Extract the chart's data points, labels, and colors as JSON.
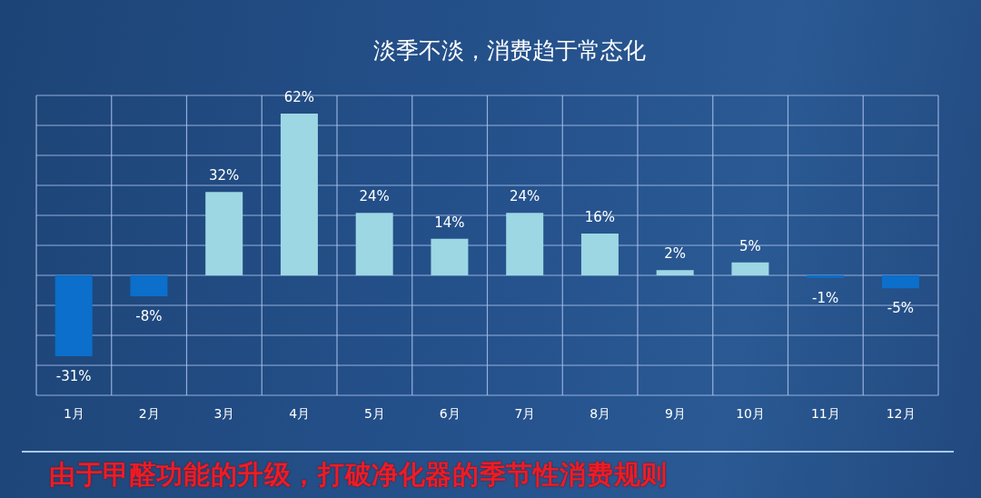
{
  "chart_data": {
    "type": "bar",
    "title": "淡季不淡，消费趋于常态化",
    "categories": [
      "1月",
      "2月",
      "3月",
      "4月",
      "5月",
      "6月",
      "7月",
      "8月",
      "9月",
      "10月",
      "11月",
      "12月"
    ],
    "values": [
      -31,
      -8,
      32,
      62,
      24,
      14,
      24,
      16,
      2,
      5,
      -1,
      -5
    ],
    "colors": [
      "#0b6fcb",
      "#0b6fcb",
      "#9dd7e4",
      "#9dd7e4",
      "#9dd7e4",
      "#9dd7e4",
      "#9dd7e4",
      "#9dd7e4",
      "#9dd7e4",
      "#9dd7e4",
      "#0b6fcb",
      "#0b6fcb"
    ],
    "value_labels": [
      "-31%",
      "-8%",
      "32%",
      "62%",
      "24%",
      "14%",
      "24%",
      "16%",
      "2%",
      "5%",
      "-1%",
      "-5%"
    ],
    "ylim": [
      -46,
      69
    ],
    "yticks": [
      {
        "value": -46,
        "label": null
      },
      {
        "value": -34.5,
        "label": null
      },
      {
        "value": -23,
        "label": null
      },
      {
        "value": -11.5,
        "label": null
      },
      {
        "value": 0,
        "label": null
      },
      {
        "value": 11.5,
        "label": null
      },
      {
        "value": 23,
        "label": null
      },
      {
        "value": 34.5,
        "label": null
      },
      {
        "value": 46,
        "label": null
      },
      {
        "value": 57.5,
        "label": null
      },
      {
        "value": 69,
        "label": null
      }
    ],
    "grid": true,
    "tick_labels": "x",
    "annotations": [
      "由于甲醛功能的升级，打破净化器的季节性消费规则"
    ]
  }
}
